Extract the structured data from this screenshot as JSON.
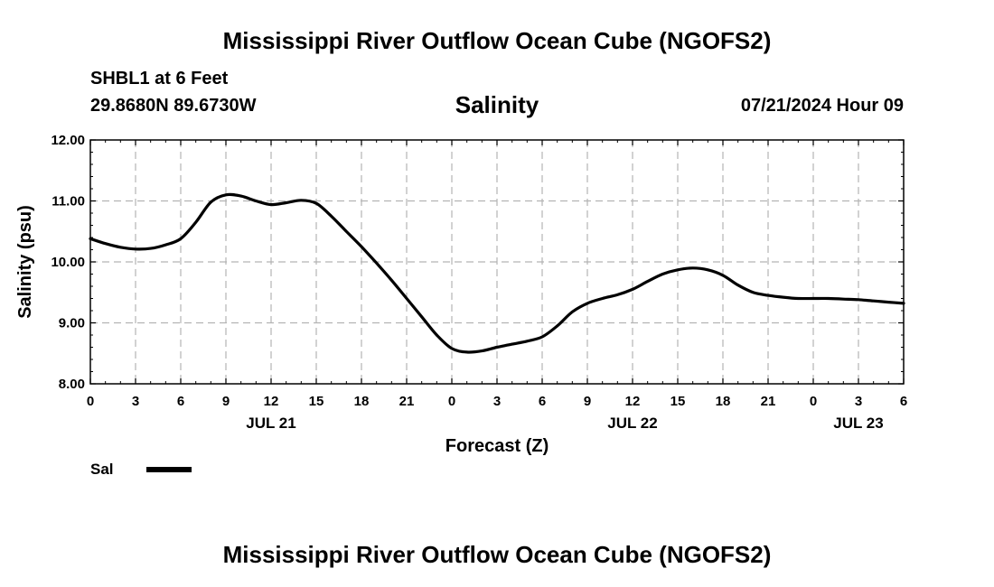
{
  "header": {
    "title": "Mississippi River Outflow Ocean Cube (NGOFS2)",
    "station": "SHBL1 at 6 Feet",
    "coordinates": "29.8680N  89.6730W",
    "variable": "Salinity",
    "datetime": "07/21/2024 Hour 09"
  },
  "footer": {
    "title": "Mississippi River Outflow Ocean Cube (NGOFS2)"
  },
  "legend": {
    "series_label": "Sal"
  },
  "chart_data": {
    "type": "line",
    "title": "Salinity",
    "xlabel": "Forecast (Z)",
    "ylabel": "Salinity (psu)",
    "xlim": [
      0,
      54
    ],
    "ylim": [
      8.0,
      12.0
    ],
    "grid": true,
    "x_ticks": [
      0,
      3,
      6,
      9,
      12,
      15,
      18,
      21,
      24,
      27,
      30,
      33,
      36,
      39,
      42,
      45,
      48,
      51,
      54
    ],
    "x_tick_labels": [
      "0",
      "3",
      "6",
      "9",
      "12",
      "15",
      "18",
      "21",
      "0",
      "3",
      "6",
      "9",
      "12",
      "15",
      "18",
      "21",
      "0",
      "3",
      "6"
    ],
    "y_ticks": [
      8.0,
      9.0,
      10.0,
      11.0,
      12.0
    ],
    "y_tick_labels": [
      "8.00",
      "9.00",
      "10.00",
      "11.00",
      "12.00"
    ],
    "date_labels": [
      {
        "label": "JUL 21",
        "x": 12
      },
      {
        "label": "JUL 22",
        "x": 36
      },
      {
        "label": "JUL 23",
        "x": 51
      }
    ],
    "series": [
      {
        "name": "Sal",
        "color": "#000000",
        "x": [
          0,
          1,
          2,
          3,
          4,
          5,
          6,
          7,
          8,
          9,
          10,
          11,
          12,
          13,
          14,
          15,
          16,
          17,
          18,
          19,
          20,
          21,
          22,
          23,
          24,
          25,
          26,
          27,
          28,
          29,
          30,
          31,
          32,
          33,
          34,
          35,
          36,
          37,
          38,
          39,
          40,
          41,
          42,
          43,
          44,
          45,
          46,
          47,
          48,
          49,
          50,
          51,
          52,
          53,
          54
        ],
        "values": [
          10.38,
          10.3,
          10.24,
          10.21,
          10.22,
          10.28,
          10.38,
          10.65,
          10.98,
          11.1,
          11.08,
          11.0,
          10.94,
          10.97,
          11.01,
          10.96,
          10.75,
          10.5,
          10.25,
          9.98,
          9.7,
          9.4,
          9.1,
          8.8,
          8.58,
          8.52,
          8.54,
          8.6,
          8.65,
          8.7,
          8.77,
          8.95,
          9.18,
          9.32,
          9.4,
          9.46,
          9.55,
          9.68,
          9.8,
          9.87,
          9.9,
          9.87,
          9.78,
          9.62,
          9.5,
          9.45,
          9.42,
          9.4,
          9.4,
          9.4,
          9.39,
          9.38,
          9.36,
          9.34,
          9.32
        ]
      }
    ]
  }
}
